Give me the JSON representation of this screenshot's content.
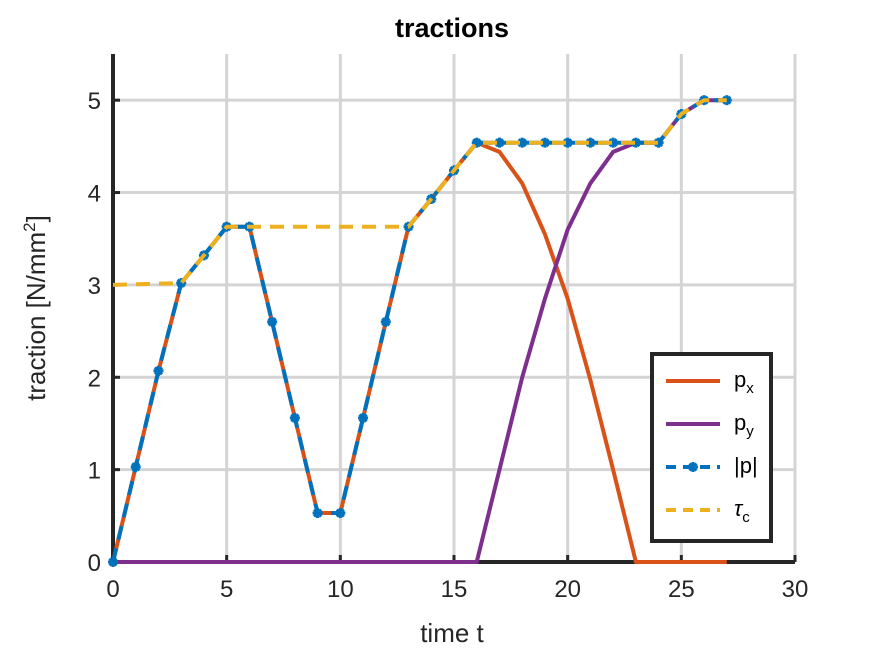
{
  "chart_data": {
    "type": "line",
    "title": "tractions",
    "xlabel": "time t",
    "ylabel": "traction [N/mm²]",
    "xlim": [
      0,
      30
    ],
    "ylim": [
      0,
      5.5
    ],
    "xticks": [
      0,
      5,
      10,
      15,
      20,
      25,
      30
    ],
    "yticks": [
      0,
      1,
      2,
      3,
      4,
      5
    ],
    "grid": true,
    "legend_position": "bottom-right",
    "series": [
      {
        "name": "p_x",
        "label_main": "p",
        "label_sub": "x",
        "color": "#D95319",
        "style": "solid",
        "marker": "none",
        "x": [
          0,
          1,
          2,
          3,
          4,
          5,
          6,
          7,
          8,
          9,
          10,
          11,
          12,
          13,
          14,
          15,
          16,
          17,
          18,
          19,
          20,
          21,
          22,
          23,
          24,
          25,
          26,
          27
        ],
        "y": [
          0,
          1.03,
          2.07,
          3.02,
          3.32,
          3.63,
          3.63,
          2.6,
          1.56,
          0.53,
          0.53,
          1.56,
          2.6,
          3.63,
          3.93,
          4.24,
          4.54,
          4.44,
          4.1,
          3.55,
          2.85,
          1.97,
          1.0,
          0,
          0,
          0,
          0,
          0
        ]
      },
      {
        "name": "p_y",
        "label_main": "p",
        "label_sub": "y",
        "color": "#7E2F8E",
        "style": "solid",
        "marker": "none",
        "x": [
          0,
          16,
          17,
          18,
          19,
          20,
          21,
          22,
          23,
          24,
          25,
          26,
          27
        ],
        "y": [
          0,
          0,
          1.0,
          2.0,
          2.85,
          3.6,
          4.1,
          4.44,
          4.54,
          4.54,
          4.85,
          5.0,
          5.0
        ]
      },
      {
        "name": "|p|",
        "label_main": "|p|",
        "label_sub": "",
        "color": "#0072BD",
        "style": "dashed",
        "marker": "asterisk",
        "x": [
          0,
          1,
          2,
          3,
          4,
          5,
          6,
          7,
          8,
          9,
          10,
          11,
          12,
          13,
          14,
          15,
          16,
          17,
          18,
          19,
          20,
          21,
          22,
          23,
          24,
          25,
          26,
          27
        ],
        "y": [
          0,
          1.03,
          2.07,
          3.02,
          3.32,
          3.63,
          3.63,
          2.6,
          1.56,
          0.53,
          0.53,
          1.56,
          2.6,
          3.63,
          3.93,
          4.24,
          4.54,
          4.54,
          4.54,
          4.54,
          4.54,
          4.54,
          4.54,
          4.54,
          4.54,
          4.85,
          5.0,
          5.0
        ]
      },
      {
        "name": "τ_c",
        "label_main": "τ",
        "label_sub": "c",
        "color": "#EDB120",
        "style": "dashed",
        "marker": "none",
        "x": [
          0,
          3,
          4,
          5,
          13,
          14,
          15,
          16,
          24,
          25,
          26,
          27
        ],
        "y": [
          3.0,
          3.02,
          3.32,
          3.63,
          3.63,
          3.93,
          4.24,
          4.54,
          4.54,
          4.85,
          5.0,
          5.0
        ]
      }
    ]
  }
}
